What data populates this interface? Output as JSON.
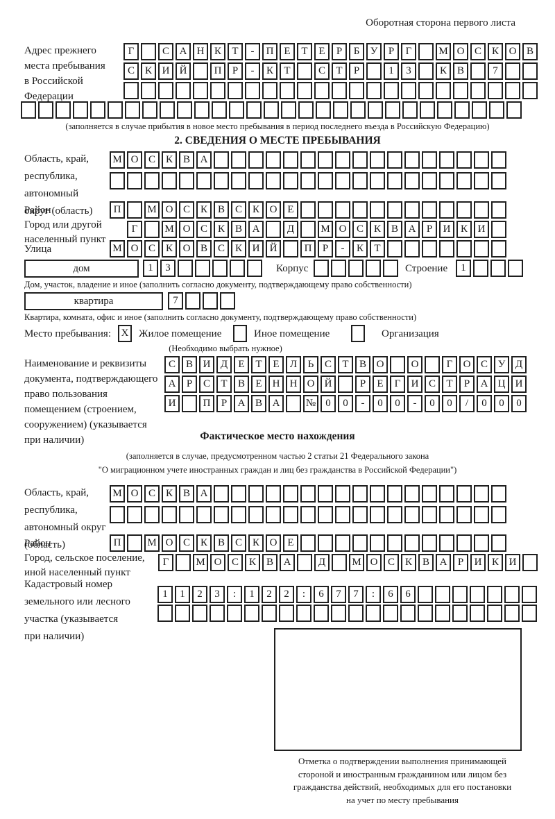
{
  "page": {
    "header_note": "Оборотная сторона первого листа"
  },
  "prev_address": {
    "label_lines": [
      "Адрес прежнего",
      "места пребывания",
      "в Российской",
      "Федерации"
    ],
    "rows": [
      {
        "t": "Г САНКТ-ПЕТЕРБУРГ МОСКОВ",
        "n": 24
      },
      {
        "t": "СКИЙ ПР-КТ СТР 13 КВ 7",
        "n": 24
      },
      {
        "t": "",
        "n": 24
      },
      {
        "t": "",
        "n": 29
      }
    ],
    "caption": "(заполняется в случае прибытия в новое место пребывания в период последнего въезда в Российскую Федерацию)"
  },
  "section2": {
    "title": "2. СВЕДЕНИЯ О МЕСТЕ ПРЕБЫВАНИЯ",
    "oblast": {
      "label_lines": [
        "Область, край,",
        "республика,",
        "автономный",
        "округ (область)"
      ],
      "rows": [
        {
          "t": "МОСКВА",
          "n": 23
        },
        {
          "t": "",
          "n": 23
        }
      ]
    },
    "rayon": {
      "label": "Район",
      "row": {
        "t": "П МОСКВСКОЕ",
        "n": 23
      }
    },
    "gorod": {
      "label_lines": [
        "Город или другой",
        "населенный пункт"
      ],
      "row": {
        "t": "Г МОСКВА Д МОСКВАРИКИ",
        "n": 22
      }
    },
    "ulitsa": {
      "label": "Улица",
      "row": {
        "t": "МОСКОВСКИЙ ПР-КТ",
        "n": 23
      }
    },
    "dom": {
      "box_label": "дом",
      "row": {
        "t": "13",
        "n": 7
      },
      "korpus_label": "Корпус",
      "korpus_row": {
        "t": "",
        "n": 5
      },
      "stroenie_label": "Строение",
      "stroenie_row": {
        "t": "1",
        "n": 4
      },
      "caption": "Дом, участок, владение и иное (заполнить согласно документу, подтверждающему право собственности)"
    },
    "kvartira": {
      "box_label": "квартира",
      "row": {
        "t": "7",
        "n": 4
      },
      "caption": "Квартира, комната, офис и иное (заполнить согласно документу, подтверждающему право собственности)"
    },
    "mesto": {
      "label": "Место пребывания:",
      "checked_value": "X",
      "options": [
        "Жилое помещение",
        "Иное помещение",
        "Организация"
      ],
      "note": "(Необходимо выбрать нужное)"
    },
    "doc": {
      "label_lines": [
        "Наименование и реквизиты",
        "документа, подтверждающего",
        "право пользования",
        "помещением (строением,",
        "сооружением) (указывается",
        "при наличии)"
      ],
      "rows": [
        {
          "t": "СВИДЕТЕЛЬСТВО О ГОСУД",
          "n": 21
        },
        {
          "t": "АРСТВЕННОЙ РЕГИСТРАЦИ",
          "n": 21
        },
        {
          "t": "И ПРАВА №00-00-00/000",
          "n": 21
        }
      ]
    }
  },
  "fact": {
    "title": "Фактическое место нахождения",
    "note_lines": [
      "(заполняется в случае, предусмотренном частью 2 статьи 21 Федерального закона",
      "\"О миграционном учете иностранных граждан и лиц без гражданства в Российской Федерации\")"
    ],
    "oblast": {
      "label_lines": [
        "Область, край,",
        "республика,",
        "автономный округ",
        "(область)"
      ],
      "rows": [
        {
          "t": "МОСКВА",
          "n": 23
        },
        {
          "t": "",
          "n": 23
        }
      ]
    },
    "rayon": {
      "label": "Район",
      "row": {
        "t": "П МОСКВСКОЕ",
        "n": 23
      }
    },
    "gorod": {
      "label_lines": [
        "Город, сельское поселение,",
        "иной населенный пункт"
      ],
      "row": {
        "t": "Г МОСКВА Д МОСКВАРИКИ",
        "n": 22
      }
    },
    "kadastr": {
      "label_lines": [
        "Кадастровый номер",
        "земельного или лесного",
        "участка (указывается",
        "при наличии)"
      ],
      "rows": [
        {
          "t": "1123:122:677:66",
          "n": 22
        },
        {
          "t": "",
          "n": 22
        }
      ]
    },
    "stamp_caption_lines": [
      "Отметка о подтверждении выполнения принимающей",
      "стороной и иностранным гражданином или лицом без",
      "гражданства действий, необходимых для его постановки",
      "на учет по месту пребывания"
    ]
  }
}
